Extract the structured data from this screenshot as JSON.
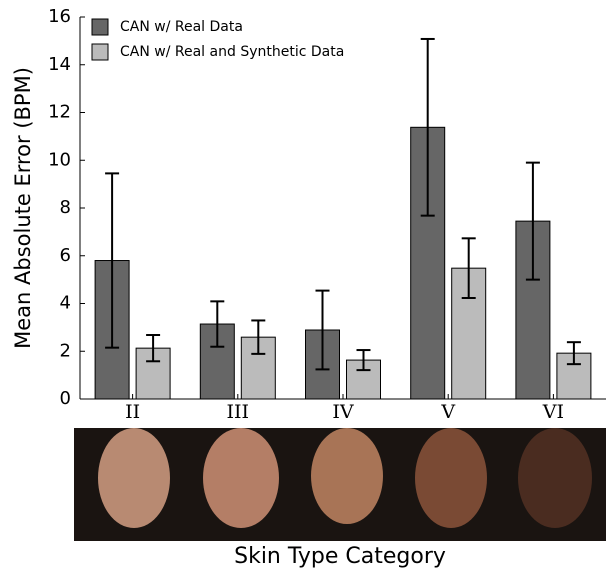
{
  "chart_data": {
    "type": "bar",
    "y_label": "Mean Absolute Error (BPM)",
    "x_label": "Skin Type Category",
    "categories": [
      "II",
      "III",
      "IV",
      "V",
      "VI"
    ],
    "series": [
      {
        "name": "CAN w/ Real Data",
        "color": "#666666",
        "values": [
          5.8,
          3.14,
          2.89,
          11.38,
          7.45
        ],
        "errors": [
          3.65,
          0.95,
          1.65,
          3.7,
          2.45
        ]
      },
      {
        "name": "CAN w/ Real and Synthetic Data",
        "color": "#bbbbbb",
        "values": [
          2.13,
          2.59,
          1.63,
          5.48,
          1.92
        ],
        "errors": [
          0.55,
          0.7,
          0.42,
          1.25,
          0.46
        ]
      }
    ],
    "ylim": [
      0,
      16
    ],
    "yticks": [
      0,
      2,
      4,
      6,
      8,
      10,
      12,
      14,
      16
    ],
    "grid": false,
    "legend": "upper left"
  }
}
